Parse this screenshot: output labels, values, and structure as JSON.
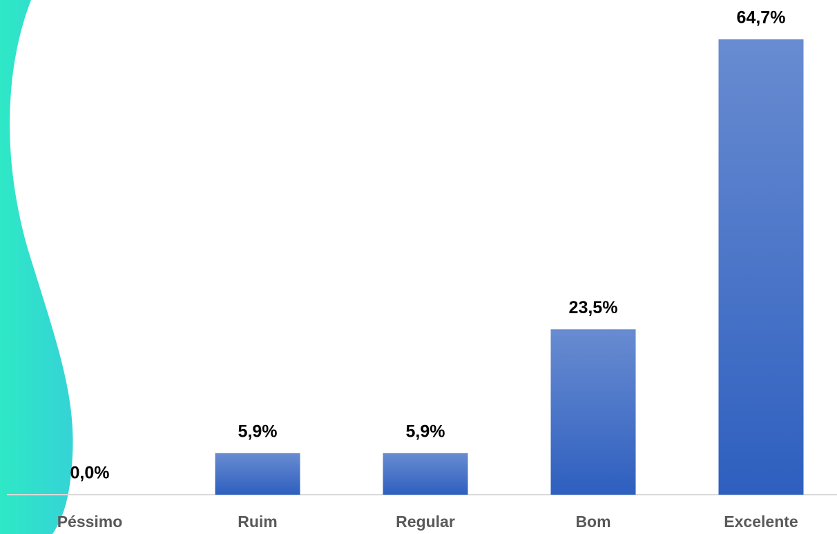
{
  "chart_data": {
    "type": "bar",
    "categories": [
      "Péssimo",
      "Ruim",
      "Regular",
      "Bom",
      "Excelente"
    ],
    "values": [
      0,
      5.9,
      5.9,
      23.5,
      64.7
    ],
    "value_labels": [
      "0,0%",
      "5,9%",
      "5,9%",
      "23,5%",
      "64,7%"
    ],
    "color": "#2e5fbf",
    "ylim": [
      0,
      70
    ]
  }
}
